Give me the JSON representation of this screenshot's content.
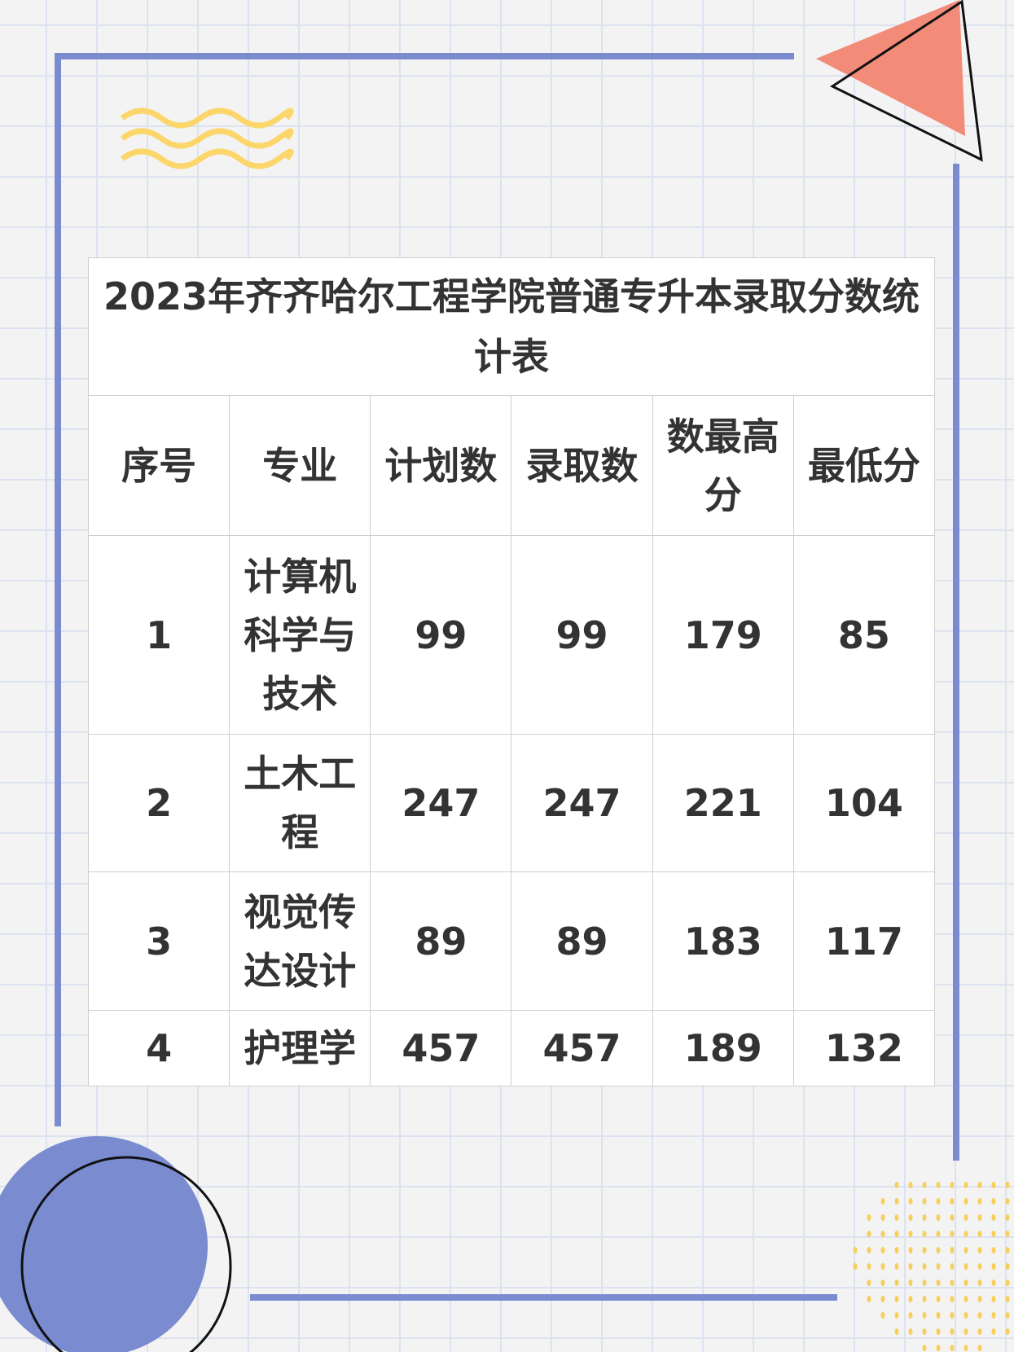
{
  "title": "2023年齐齐哈尔工程学院普通专升本录取分数统计表",
  "headers": [
    "序号",
    "专业",
    "计划数",
    "录取数",
    "数最高分",
    "最低分"
  ],
  "rows": [
    [
      "1",
      "计算机科学与技术",
      "99",
      "99",
      "179",
      "85"
    ],
    [
      "2",
      "土木工程",
      "247",
      "247",
      "221",
      "104"
    ],
    [
      "3",
      "视觉传达设计",
      "89",
      "89",
      "183",
      "117"
    ],
    [
      "4",
      "护理学",
      "457",
      "457",
      "189",
      "132"
    ]
  ],
  "colors": {
    "frame": "#7b8bd0",
    "triangle": "#f28b78",
    "waves": "#fcd66b",
    "dots": "#f7cf5a"
  }
}
